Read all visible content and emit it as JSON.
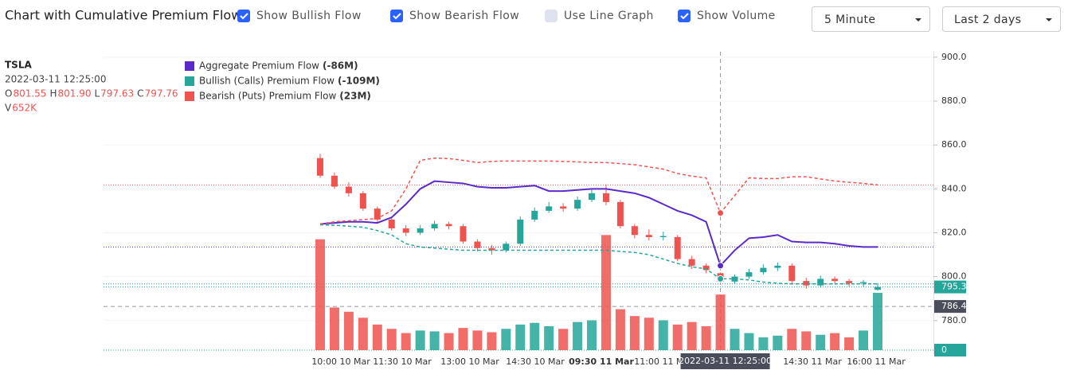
{
  "header": {
    "title": "Chart with Cumulative Premium Flow",
    "checkboxes": [
      {
        "label": "Show Bullish Flow",
        "checked": true
      },
      {
        "label": "Show Bearish Flow",
        "checked": true
      },
      {
        "label": "Use Line Graph",
        "checked": false
      },
      {
        "label": "Show Volume",
        "checked": true
      }
    ],
    "dropdowns": [
      "5 Minute",
      "Last 2 days"
    ]
  },
  "info": {
    "symbol": "TSLA",
    "time": "2022-03-11 12:25:00",
    "fields": [
      {
        "key": "O",
        "label": "801.55"
      },
      {
        "key": "H",
        "label": "801.90"
      },
      {
        "key": "L",
        "label": "797.63"
      },
      {
        "key": "C",
        "label": "797.76"
      }
    ],
    "volume": {
      "key": "V",
      "label": "652K"
    }
  },
  "chart_data": {
    "type": "candlestick",
    "up_color": "#26a69a",
    "down_color": "#ef5350",
    "ylim": [
      766.5,
      902.5
    ],
    "yticks": [
      {
        "value": 780,
        "label": "780.0"
      },
      {
        "value": 800,
        "label": "800.0"
      },
      {
        "value": 820,
        "label": "820.0"
      },
      {
        "value": 840,
        "label": "840.0"
      },
      {
        "value": 860,
        "label": "860.0"
      },
      {
        "value": 880,
        "label": "880.0"
      },
      {
        "value": 900,
        "label": "900.0"
      }
    ],
    "vlim": [
      0,
      1400
    ],
    "vticks": [
      0
    ],
    "xticks": [
      "10:00 10 Mar",
      "11:30 10 Mar",
      "13:00 10 Mar",
      "14:30 10 Mar",
      "09:30 11 Mar",
      "11:00 11 Mar",
      "14:30 11 Mar",
      "16:00 11 Mar"
    ],
    "crosshair": {
      "index": 28,
      "price": 786.4,
      "label": "2022-03-11 12:25:00"
    },
    "open": [
      854,
      846,
      841,
      838,
      831,
      826,
      822,
      820,
      822,
      824,
      823,
      816,
      813,
      812,
      815,
      826,
      830,
      832,
      831,
      835,
      838,
      834,
      823,
      819,
      818,
      818,
      808,
      805,
      801.55,
      797.76,
      800,
      802,
      804,
      805,
      798,
      796,
      799,
      798,
      797,
      794
    ],
    "high": [
      856,
      847.5,
      843,
      839,
      832,
      827,
      823.5,
      823.5,
      825.5,
      825,
      824,
      817,
      814.5,
      816,
      827.5,
      831.5,
      834,
      833.5,
      836.5,
      840,
      842,
      835,
      824,
      821.5,
      820.5,
      819,
      809.5,
      806,
      801.9,
      801,
      803.5,
      805.5,
      806.5,
      806,
      799.5,
      800.5,
      800,
      799,
      798.5,
      797
    ],
    "low": [
      845,
      840,
      836.5,
      830,
      824.5,
      821,
      818.5,
      819,
      821,
      821.5,
      815,
      811.5,
      810,
      811,
      814,
      825,
      829,
      829.5,
      830,
      834,
      832.5,
      822,
      817.5,
      816.5,
      816.5,
      807,
      803.5,
      801.5,
      797.63,
      796.5,
      799,
      801,
      802.5,
      797,
      794.5,
      795,
      796.5,
      795.5,
      795.5,
      793.5
    ],
    "close": [
      846,
      841,
      838,
      831,
      826,
      822,
      820,
      822,
      824,
      823,
      816,
      813,
      812,
      815,
      826,
      830,
      832,
      831,
      835,
      838,
      834,
      823,
      819,
      818,
      818.5,
      808,
      805,
      803,
      797.76,
      800,
      802,
      804,
      805,
      798,
      796,
      799,
      798,
      797,
      797.5,
      795.3
    ],
    "volume": [
      1300,
      500,
      450,
      380,
      300,
      250,
      200,
      230,
      220,
      200,
      260,
      230,
      210,
      250,
      300,
      320,
      280,
      250,
      330,
      350,
      1350,
      480,
      400,
      380,
      350,
      300,
      330,
      280,
      652,
      250,
      200,
      150,
      170,
      250,
      220,
      180,
      200,
      150,
      230,
      672
    ],
    "series": [
      {
        "name": "Aggregate Premium Flow",
        "total": -86,
        "total_label": "(-86M)",
        "color": "#5b2bc9",
        "dashed": false,
        "values": [
          824,
          824.5,
          825,
          825,
          824.5,
          827,
          833,
          840,
          843.5,
          843,
          842.5,
          841,
          840.5,
          840.5,
          841,
          841.5,
          839,
          839,
          839.5,
          840,
          840,
          839,
          838,
          836,
          833,
          830,
          828,
          825,
          805,
          812,
          817.5,
          818,
          819,
          816,
          815.6,
          815.6,
          815,
          814,
          813.5,
          813.5
        ]
      },
      {
        "name": "Bullish (Calls) Premium Flow",
        "total": -109,
        "total_label": "(-109M)",
        "color": "#26a69a",
        "dashed": true,
        "values": [
          823.6,
          823.4,
          823,
          822.5,
          821,
          819,
          815,
          813.5,
          813,
          812.5,
          812,
          812,
          812,
          812,
          812,
          812,
          812,
          812,
          812,
          812,
          812,
          811.5,
          811,
          810,
          808,
          806,
          804.5,
          803.5,
          799,
          799,
          798.5,
          797.5,
          797,
          796.7,
          796.7,
          796.7,
          796.7,
          796.7,
          796.7,
          796.7
        ]
      },
      {
        "name": "Bearish (Puts) Premium Flow",
        "total": 23,
        "total_label": "(23M)",
        "color": "#ef5350",
        "dashed": true,
        "values": [
          824,
          825,
          825.5,
          826,
          826.5,
          830,
          840,
          853,
          854,
          853.8,
          853,
          852,
          852.5,
          852.7,
          852.7,
          852.7,
          852.7,
          852.5,
          852.3,
          852,
          852,
          851.5,
          851,
          850,
          849,
          847,
          845.8,
          845,
          829,
          837,
          845,
          844.7,
          844.7,
          845.5,
          845.5,
          844.5,
          843.6,
          843,
          842.5,
          841.8
        ]
      }
    ]
  }
}
